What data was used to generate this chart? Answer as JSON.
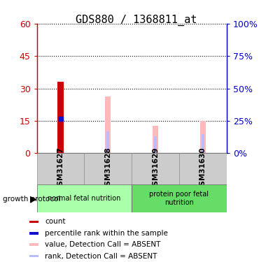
{
  "title": "GDS880 / 1368811_at",
  "samples": [
    "GSM31627",
    "GSM31628",
    "GSM31629",
    "GSM31630"
  ],
  "left_ylim": [
    0,
    60
  ],
  "right_ylim": [
    0,
    100
  ],
  "left_yticks": [
    0,
    15,
    30,
    45,
    60
  ],
  "right_yticks": [
    0,
    25,
    50,
    75,
    100
  ],
  "left_yticklabels": [
    "0",
    "15",
    "30",
    "45",
    "60"
  ],
  "right_yticklabels": [
    "0%",
    "25%",
    "50%",
    "75%",
    "100%"
  ],
  "count_values": [
    33,
    0,
    0,
    0
  ],
  "count_color": "#cc0000",
  "percentile_rank_values": [
    16,
    0,
    0,
    0
  ],
  "percentile_rank_color": "#1111cc",
  "absent_value_values": [
    0,
    44,
    21,
    25
  ],
  "absent_value_color": "#ffbbbb",
  "absent_rank_values": [
    0,
    17,
    13,
    15
  ],
  "absent_rank_color": "#bbbbff",
  "groups": [
    {
      "label": "normal fetal nutrition",
      "samples": [
        0,
        1
      ],
      "color": "#aaffaa"
    },
    {
      "label": "protein poor fetal\nnutrition",
      "samples": [
        2,
        3
      ],
      "color": "#66dd66"
    }
  ],
  "group_label_prefix": "growth protocol",
  "left_axis_color": "#cc0000",
  "right_axis_color": "#0000cc",
  "title_fontsize": 11,
  "tick_fontsize": 9,
  "legend_items": [
    {
      "label": "count",
      "color": "#cc0000"
    },
    {
      "label": "percentile rank within the sample",
      "color": "#1111cc"
    },
    {
      "label": "value, Detection Call = ABSENT",
      "color": "#ffbbbb"
    },
    {
      "label": "rank, Detection Call = ABSENT",
      "color": "#bbbbff"
    }
  ]
}
